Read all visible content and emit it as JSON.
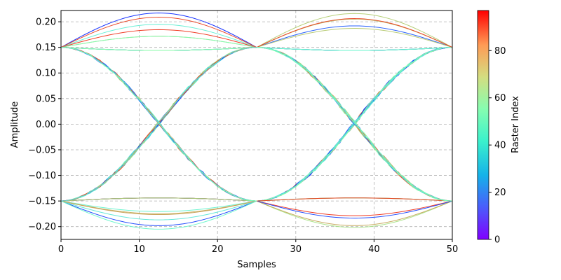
{
  "chart_data": {
    "type": "line",
    "title": "",
    "xlabel": "Samples",
    "ylabel": "Amplitude",
    "xlim": [
      0,
      50
    ],
    "ylim": [
      -0.225,
      0.222
    ],
    "xticks": [
      0,
      10,
      20,
      30,
      40,
      50
    ],
    "yticks": [
      -0.2,
      -0.15,
      -0.1,
      -0.05,
      0.0,
      0.05,
      0.1,
      0.15,
      0.2
    ],
    "xtick_labels": [
      "0",
      "10",
      "20",
      "30",
      "40",
      "50"
    ],
    "ytick_labels": [
      "−0.20",
      "−0.15",
      "−0.10",
      "−0.05",
      "0.00",
      "0.05",
      "0.10",
      "0.15",
      "0.20"
    ],
    "grid": true,
    "symbol_period_samples": 25,
    "traces_per_period": 50,
    "colorbar": {
      "label": "Raster Index",
      "colormap": "rainbow",
      "range": [
        0,
        97
      ],
      "ticks": [
        0,
        20,
        40,
        60,
        80
      ],
      "tick_labels": [
        "0",
        "20",
        "40",
        "60",
        "80"
      ]
    },
    "levels": {
      "high": 0.15,
      "low": -0.15,
      "overshoot_high_max": 0.22,
      "overshoot_low_min": -0.22
    }
  }
}
